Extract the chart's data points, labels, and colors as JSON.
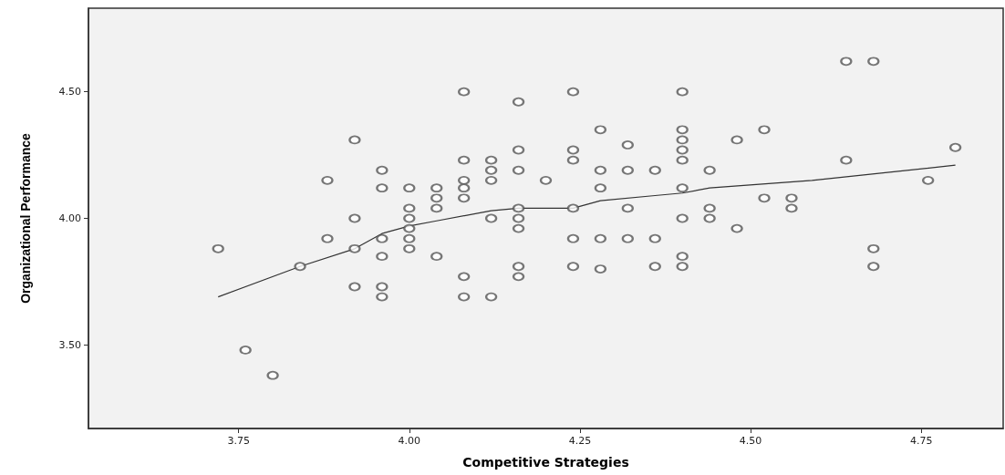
{
  "chart_data": {
    "type": "scatter",
    "xlabel": "Competitive Strategies",
    "ylabel": "Organizational Performance",
    "xlim": [
      3.53,
      4.87
    ],
    "xticks": [
      {
        "value": 3.75,
        "label": "3.75"
      },
      {
        "value": 4,
        "label": "4.00"
      },
      {
        "value": 4.25,
        "label": "4.25"
      },
      {
        "value": 4.5,
        "label": "4.50"
      },
      {
        "value": 4.75,
        "label": "4.75"
      }
    ],
    "ylim": [
      3.17,
      4.83
    ],
    "yticks": [
      {
        "value": 3.5,
        "label": "3.50"
      },
      {
        "value": 4,
        "label": "4.00"
      },
      {
        "value": 4.5,
        "label": "4.50"
      }
    ],
    "grid": false,
    "marker": "circle",
    "series": [
      {
        "color": "#555555",
        "x": [
          3.72,
          3.76,
          3.8,
          3.84,
          3.88,
          3.88,
          3.92,
          3.92,
          3.92,
          3.92,
          3.96,
          3.96,
          3.96,
          3.96,
          3.96,
          3.96,
          4.0,
          4.0,
          4.0,
          4.0,
          4.0,
          4.0,
          4.04,
          4.04,
          4.04,
          4.04,
          4.08,
          4.08,
          4.08,
          4.08,
          4.08,
          4.08,
          4.08,
          4.12,
          4.12,
          4.12,
          4.12,
          4.12,
          4.16,
          4.16,
          4.16,
          4.16,
          4.16,
          4.16,
          4.16,
          4.16,
          4.2,
          4.24,
          4.24,
          4.24,
          4.24,
          4.24,
          4.24,
          4.28,
          4.28,
          4.28,
          4.28,
          4.28,
          4.32,
          4.32,
          4.32,
          4.32,
          4.36,
          4.36,
          4.36,
          4.4,
          4.4,
          4.4,
          4.4,
          4.4,
          4.4,
          4.4,
          4.4,
          4.4,
          4.44,
          4.44,
          4.44,
          4.48,
          4.48,
          4.52,
          4.52,
          4.56,
          4.56,
          4.64,
          4.64,
          4.68,
          4.68,
          4.68,
          4.76,
          4.8
        ],
        "values": [
          3.88,
          3.48,
          3.38,
          3.81,
          4.15,
          3.92,
          4.31,
          4.0,
          3.88,
          3.73,
          4.19,
          4.12,
          3.92,
          3.85,
          3.73,
          3.69,
          4.12,
          4.04,
          4.0,
          3.96,
          3.92,
          3.88,
          4.12,
          4.08,
          4.04,
          3.85,
          4.5,
          4.23,
          4.15,
          4.12,
          4.08,
          3.77,
          3.69,
          4.23,
          4.19,
          4.15,
          4.0,
          3.69,
          4.46,
          4.27,
          4.19,
          4.04,
          4.0,
          3.96,
          3.81,
          3.77,
          4.15,
          4.5,
          4.27,
          4.23,
          4.04,
          3.92,
          3.81,
          4.35,
          4.19,
          4.12,
          3.92,
          3.8,
          4.29,
          4.19,
          4.04,
          3.92,
          4.19,
          3.92,
          3.81,
          4.5,
          4.35,
          4.31,
          4.27,
          4.23,
          4.12,
          4.0,
          3.85,
          3.81,
          4.19,
          4.04,
          4.0,
          4.31,
          3.96,
          4.35,
          4.08,
          4.08,
          4.04,
          4.62,
          4.23,
          4.62,
          3.88,
          3.81,
          4.15,
          4.28
        ]
      },
      {
        "type": "line",
        "color": "#333333",
        "marker": "none",
        "line_style": "solid",
        "x": [
          3.72,
          3.84,
          3.92,
          3.96,
          4.0,
          4.04,
          4.12,
          4.16,
          4.2,
          4.24,
          4.28,
          4.36,
          4.4,
          4.44,
          4.59,
          4.8
        ],
        "values": [
          3.69,
          3.81,
          3.88,
          3.94,
          3.97,
          3.99,
          4.03,
          4.04,
          4.04,
          4.04,
          4.07,
          4.09,
          4.1,
          4.12,
          4.15,
          4.21
        ]
      }
    ]
  }
}
